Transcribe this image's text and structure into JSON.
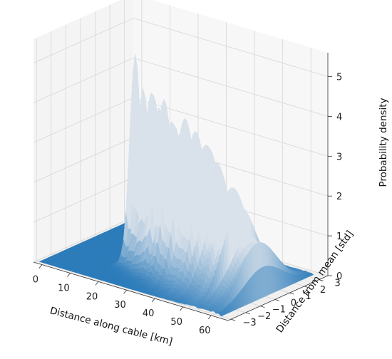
{
  "chart_data": {
    "type": "surface3d",
    "title": "",
    "xlabel": "Distance along cable [km]",
    "ylabel": "Distance from mean [std]",
    "zlabel": "Probability density",
    "xlim": [
      -3,
      66
    ],
    "ylim": [
      -3.2,
      3.6
    ],
    "zlim": [
      0,
      5.6
    ],
    "x_ticks": [
      0,
      10,
      20,
      30,
      40,
      50,
      60
    ],
    "y_ticks": [
      -3,
      -2,
      -1,
      0,
      1,
      2,
      3
    ],
    "z_ticks": [
      0,
      1,
      2,
      3,
      4,
      5
    ],
    "x_tick_labels": [
      "0",
      "10",
      "20",
      "30",
      "40",
      "50",
      "60"
    ],
    "y_tick_labels": [
      "−3",
      "−2",
      "−1",
      "0",
      "1",
      "2",
      "3"
    ],
    "z_tick_labels": [
      "0",
      "1",
      "2",
      "3",
      "4",
      "5"
    ],
    "grid": true,
    "surface_color_low": "#2b7bba",
    "surface_color_high": "#d9e1ea",
    "cable_extent_km": [
      15,
      62
    ],
    "density_envelope": [
      {
        "x": 15,
        "peak": 5.0
      },
      {
        "x": 20,
        "peak": 4.6
      },
      {
        "x": 25,
        "peak": 4.4
      },
      {
        "x": 30,
        "peak": 4.0
      },
      {
        "x": 35,
        "peak": 3.6
      },
      {
        "x": 40,
        "peak": 3.3
      },
      {
        "x": 45,
        "peak": 3.0
      },
      {
        "x": 50,
        "peak": 2.4
      },
      {
        "x": 55,
        "peak": 1.8
      },
      {
        "x": 60,
        "peak": 1.2
      },
      {
        "x": 62,
        "peak": 1.0
      }
    ]
  }
}
